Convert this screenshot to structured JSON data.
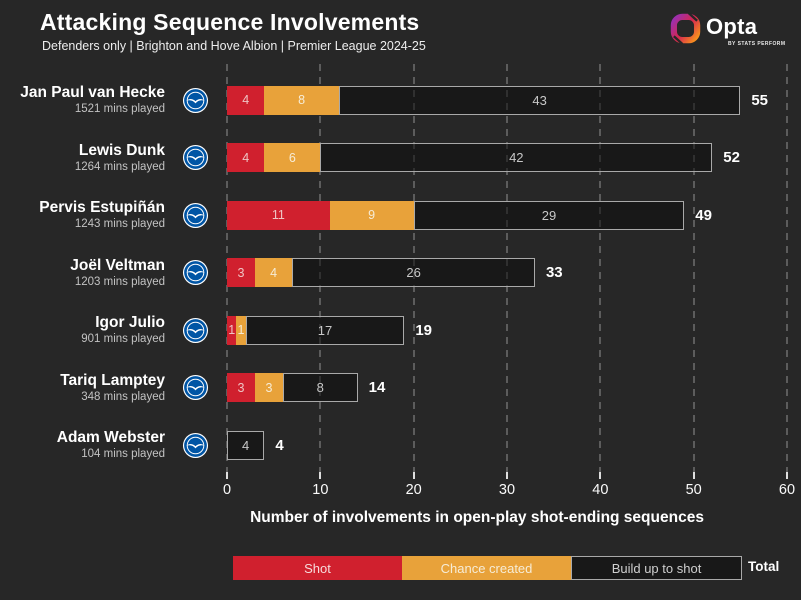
{
  "header": {
    "title": "Attacking Sequence Involvements",
    "subtitle": "Defenders only | Brighton and Hove Albion | Premier League 2024-25",
    "brand": {
      "name": "Opta",
      "sub": "BY STATS PERFORM"
    }
  },
  "colors": {
    "background": "#272727",
    "shot": "#d0202e",
    "chance_created": "#e8a23a",
    "build_up_fill": "#1a1a1a",
    "build_up_border": "#a9a9a9",
    "gridline": "#5c5c5c",
    "opta_gradient": [
      "#9b2fae",
      "#d62750",
      "#f78f1e"
    ],
    "badge_blue": "#0055a5"
  },
  "chart_data": {
    "type": "bar",
    "orientation": "horizontal",
    "stacked": true,
    "title": "Attacking Sequence Involvements",
    "subtitle": "Defenders only | Brighton and Hove Albion | Premier League 2024-25",
    "xlabel": "Number of involvements in open-play shot-ending sequences",
    "xlim": [
      0,
      60
    ],
    "xticks": [
      0,
      10,
      20,
      30,
      40,
      50,
      60
    ],
    "grid": "dashed-vertical",
    "legend_position": "bottom",
    "legend": [
      "Shot",
      "Chance created",
      "Build up to shot"
    ],
    "legend_total_label": "Total",
    "categories": [
      "Jan Paul van Hecke",
      "Lewis Dunk",
      "Pervis Estupiñán",
      "Joël Veltman",
      "Igor Julio",
      "Tariq Lamptey",
      "Adam Webster"
    ],
    "series": [
      {
        "name": "Shot",
        "values": [
          4,
          4,
          11,
          3,
          1,
          3,
          0
        ]
      },
      {
        "name": "Chance created",
        "values": [
          8,
          6,
          9,
          4,
          1,
          3,
          0
        ]
      },
      {
        "name": "Build up to shot",
        "values": [
          43,
          42,
          29,
          26,
          17,
          8,
          4
        ]
      }
    ],
    "players": [
      {
        "name": "Jan Paul van Hecke",
        "mins": "1521 mins played",
        "shot": 4,
        "chance_created": 8,
        "build_up": 43,
        "total": 55
      },
      {
        "name": "Lewis Dunk",
        "mins": "1264 mins played",
        "shot": 4,
        "chance_created": 6,
        "build_up": 42,
        "total": 52
      },
      {
        "name": "Pervis Estupiñán",
        "mins": "1243 mins played",
        "shot": 11,
        "chance_created": 9,
        "build_up": 29,
        "total": 49
      },
      {
        "name": "Joël Veltman",
        "mins": "1203 mins played",
        "shot": 3,
        "chance_created": 4,
        "build_up": 26,
        "total": 33
      },
      {
        "name": "Igor Julio",
        "mins": "901 mins played",
        "shot": 1,
        "chance_created": 1,
        "build_up": 17,
        "total": 19
      },
      {
        "name": "Tariq Lamptey",
        "mins": "348 mins played",
        "shot": 3,
        "chance_created": 3,
        "build_up": 8,
        "total": 14
      },
      {
        "name": "Adam Webster",
        "mins": "104 mins played",
        "shot": 0,
        "chance_created": 0,
        "build_up": 4,
        "total": 4
      }
    ]
  }
}
